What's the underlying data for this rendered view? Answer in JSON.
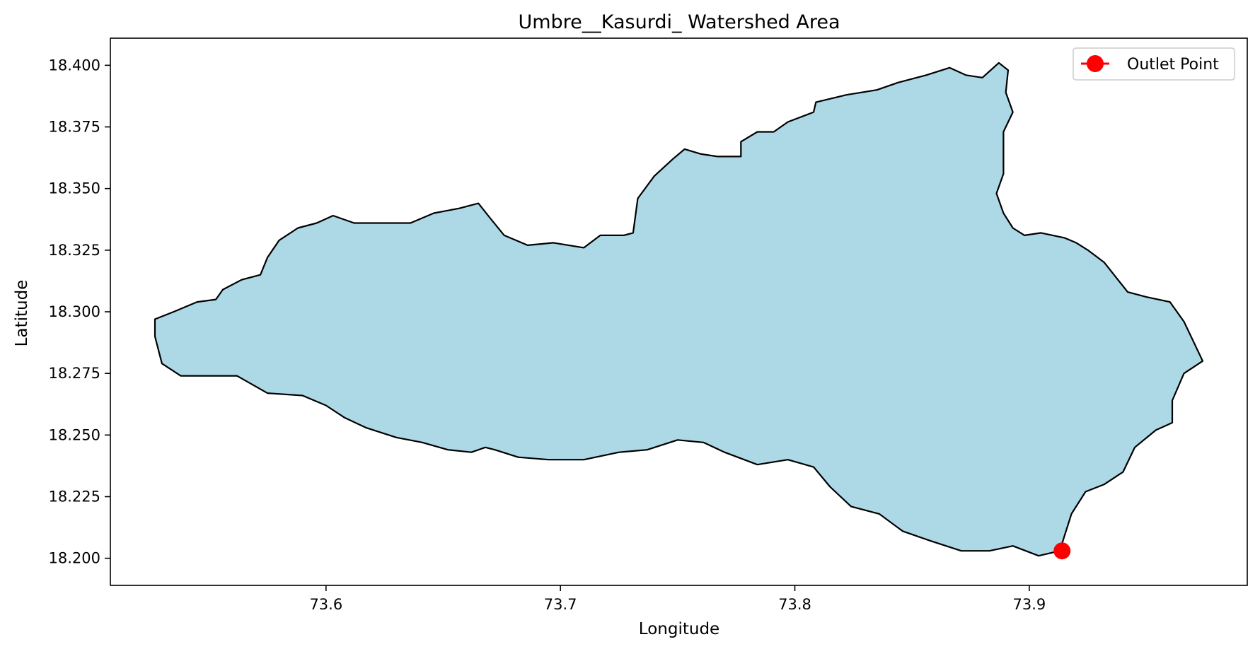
{
  "chart_data": {
    "type": "map",
    "title": "Umbre__Kasurdi_ Watershed Area",
    "xlabel": "Longitude",
    "ylabel": "Latitude",
    "xlim": [
      73.508,
      73.993
    ],
    "ylim": [
      18.189,
      18.411
    ],
    "xticks": [
      73.6,
      73.7,
      73.8,
      73.9
    ],
    "xtick_labels": [
      "73.6",
      "73.7",
      "73.8",
      "73.9"
    ],
    "yticks": [
      18.2,
      18.225,
      18.25,
      18.275,
      18.3,
      18.325,
      18.35,
      18.375,
      18.4
    ],
    "ytick_labels": [
      "18.200",
      "18.225",
      "18.250",
      "18.275",
      "18.300",
      "18.325",
      "18.350",
      "18.375",
      "18.400"
    ],
    "grid": false,
    "legend": {
      "position": "top-right",
      "entries": [
        "Outlet Point"
      ]
    },
    "colors": {
      "fill": "#add8e6",
      "edge": "#000000",
      "outlet": "#ff0000"
    },
    "watershed_boundary": [
      [
        73.527,
        18.297
      ],
      [
        73.535,
        18.3
      ],
      [
        73.545,
        18.304
      ],
      [
        73.553,
        18.305
      ],
      [
        73.556,
        18.309
      ],
      [
        73.564,
        18.313
      ],
      [
        73.572,
        18.315
      ],
      [
        73.575,
        18.322
      ],
      [
        73.58,
        18.329
      ],
      [
        73.588,
        18.334
      ],
      [
        73.596,
        18.336
      ],
      [
        73.603,
        18.339
      ],
      [
        73.612,
        18.336
      ],
      [
        73.623,
        18.336
      ],
      [
        73.636,
        18.336
      ],
      [
        73.646,
        18.34
      ],
      [
        73.657,
        18.342
      ],
      [
        73.665,
        18.344
      ],
      [
        73.67,
        18.338
      ],
      [
        73.676,
        18.331
      ],
      [
        73.686,
        18.327
      ],
      [
        73.697,
        18.328
      ],
      [
        73.71,
        18.326
      ],
      [
        73.717,
        18.331
      ],
      [
        73.727,
        18.331
      ],
      [
        73.731,
        18.332
      ],
      [
        73.733,
        18.346
      ],
      [
        73.74,
        18.355
      ],
      [
        73.748,
        18.362
      ],
      [
        73.753,
        18.366
      ],
      [
        73.76,
        18.364
      ],
      [
        73.767,
        18.363
      ],
      [
        73.777,
        18.363
      ],
      [
        73.777,
        18.369
      ],
      [
        73.784,
        18.373
      ],
      [
        73.791,
        18.373
      ],
      [
        73.797,
        18.377
      ],
      [
        73.808,
        18.381
      ],
      [
        73.809,
        18.385
      ],
      [
        73.822,
        18.388
      ],
      [
        73.835,
        18.39
      ],
      [
        73.844,
        18.393
      ],
      [
        73.856,
        18.396
      ],
      [
        73.866,
        18.399
      ],
      [
        73.873,
        18.396
      ],
      [
        73.88,
        18.395
      ],
      [
        73.887,
        18.401
      ],
      [
        73.891,
        18.398
      ],
      [
        73.89,
        18.389
      ],
      [
        73.893,
        18.381
      ],
      [
        73.889,
        18.373
      ],
      [
        73.889,
        18.365
      ],
      [
        73.889,
        18.356
      ],
      [
        73.886,
        18.348
      ],
      [
        73.889,
        18.34
      ],
      [
        73.893,
        18.334
      ],
      [
        73.898,
        18.331
      ],
      [
        73.905,
        18.332
      ],
      [
        73.915,
        18.33
      ],
      [
        73.92,
        18.328
      ],
      [
        73.925,
        18.325
      ],
      [
        73.932,
        18.32
      ],
      [
        73.937,
        18.314
      ],
      [
        73.942,
        18.308
      ],
      [
        73.95,
        18.306
      ],
      [
        73.96,
        18.304
      ],
      [
        73.966,
        18.296
      ],
      [
        73.97,
        18.288
      ],
      [
        73.974,
        18.28
      ],
      [
        73.966,
        18.275
      ],
      [
        73.961,
        18.264
      ],
      [
        73.961,
        18.255
      ],
      [
        73.954,
        18.252
      ],
      [
        73.945,
        18.245
      ],
      [
        73.94,
        18.235
      ],
      [
        73.932,
        18.23
      ],
      [
        73.924,
        18.227
      ],
      [
        73.918,
        18.218
      ],
      [
        73.913,
        18.203
      ],
      [
        73.904,
        18.201
      ],
      [
        73.893,
        18.205
      ],
      [
        73.883,
        18.203
      ],
      [
        73.871,
        18.203
      ],
      [
        73.858,
        18.207
      ],
      [
        73.846,
        18.211
      ],
      [
        73.836,
        18.218
      ],
      [
        73.824,
        18.221
      ],
      [
        73.815,
        18.229
      ],
      [
        73.808,
        18.237
      ],
      [
        73.797,
        18.24
      ],
      [
        73.784,
        18.238
      ],
      [
        73.77,
        18.243
      ],
      [
        73.761,
        18.247
      ],
      [
        73.75,
        18.248
      ],
      [
        73.737,
        18.244
      ],
      [
        73.725,
        18.243
      ],
      [
        73.71,
        18.24
      ],
      [
        73.695,
        18.24
      ],
      [
        73.682,
        18.241
      ],
      [
        73.672,
        18.244
      ],
      [
        73.668,
        18.245
      ],
      [
        73.662,
        18.243
      ],
      [
        73.652,
        18.244
      ],
      [
        73.641,
        18.247
      ],
      [
        73.63,
        18.249
      ],
      [
        73.617,
        18.253
      ],
      [
        73.608,
        18.257
      ],
      [
        73.6,
        18.262
      ],
      [
        73.59,
        18.266
      ],
      [
        73.575,
        18.267
      ],
      [
        73.562,
        18.274
      ],
      [
        73.548,
        18.274
      ],
      [
        73.538,
        18.274
      ],
      [
        73.53,
        18.279
      ],
      [
        73.527,
        18.29
      ]
    ],
    "outlet_point": {
      "x": 73.914,
      "y": 18.203,
      "label": "Outlet Point"
    }
  }
}
